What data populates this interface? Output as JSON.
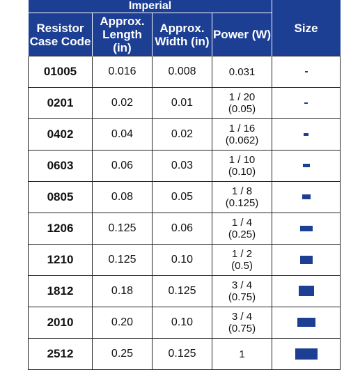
{
  "table": {
    "group_header": "Imperial",
    "headers": {
      "code": "Resistor Case Code",
      "length": "Approx. Length (in)",
      "width": "Approx. Width (in)",
      "power": "Power (W)",
      "size": "Size"
    },
    "rows": [
      {
        "code": "01005",
        "length": "0.016",
        "width": "0.008",
        "power_line1": "0.031",
        "power_line2": ""
      },
      {
        "code": "0201",
        "length": "0.02",
        "width": "0.01",
        "power_line1": "1 / 20",
        "power_line2": "(0.05)"
      },
      {
        "code": "0402",
        "length": "0.04",
        "width": "0.02",
        "power_line1": "1 / 16",
        "power_line2": "(0.062)"
      },
      {
        "code": "0603",
        "length": "0.06",
        "width": "0.03",
        "power_line1": "1 / 10",
        "power_line2": "(0.10)"
      },
      {
        "code": "0805",
        "length": "0.08",
        "width": "0.05",
        "power_line1": "1 / 8",
        "power_line2": "(0.125)"
      },
      {
        "code": "1206",
        "length": "0.125",
        "width": "0.06",
        "power_line1": "1 / 4",
        "power_line2": "(0.25)"
      },
      {
        "code": "1210",
        "length": "0.125",
        "width": "0.10",
        "power_line1": "1 / 2",
        "power_line2": "(0.5)"
      },
      {
        "code": "1812",
        "length": "0.18",
        "width": "0.125",
        "power_line1": "3 / 4",
        "power_line2": "(0.75)"
      },
      {
        "code": "2010",
        "length": "0.20",
        "width": "0.10",
        "power_line1": "3 / 4",
        "power_line2": "(0.75)"
      },
      {
        "code": "2512",
        "length": "0.25",
        "width": "0.125",
        "power_line1": "1",
        "power_line2": ""
      }
    ]
  },
  "colors": {
    "header_bg": "#1c3f94",
    "chip": "#1c3f94"
  }
}
